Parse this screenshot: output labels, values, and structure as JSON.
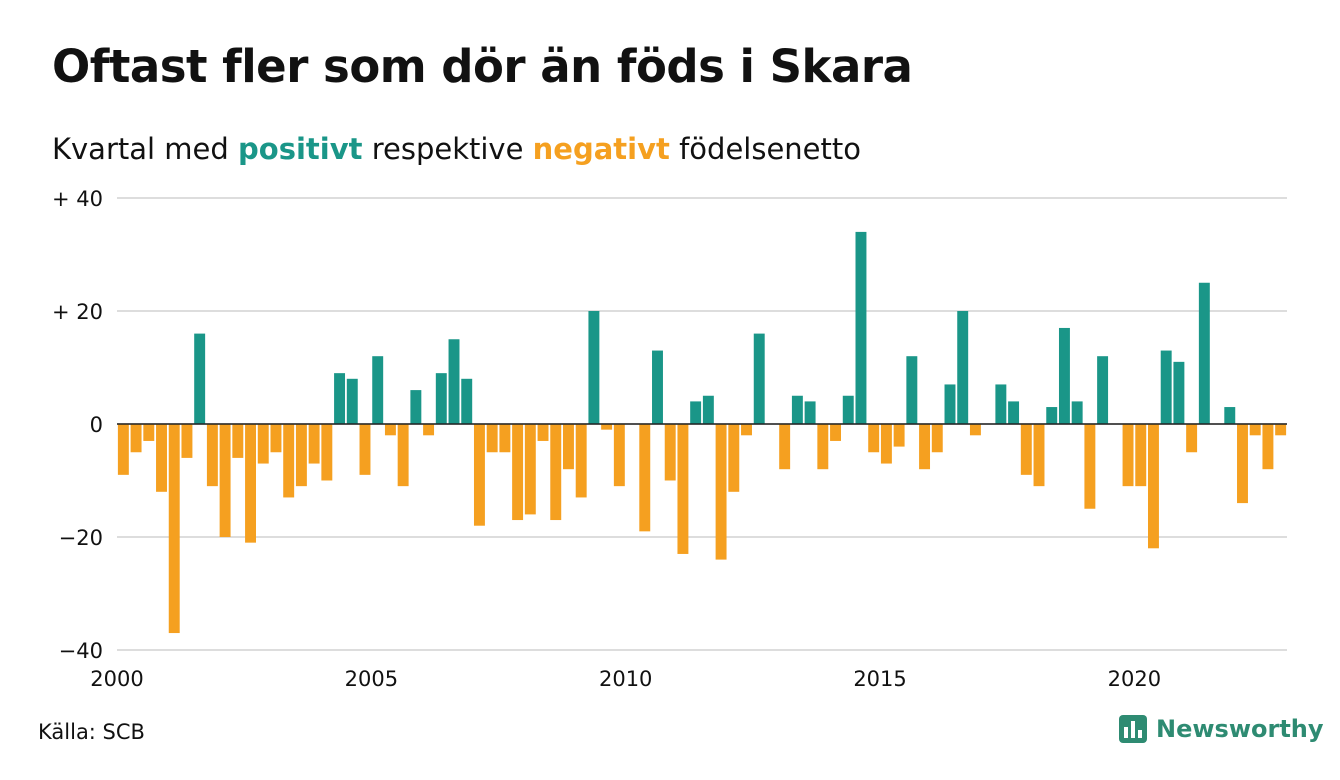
{
  "title": "Oftast fler som dör än föds i Skara",
  "subtitle": {
    "prefix": "Kvartal med ",
    "positive": "positivt",
    "middle": " respektive ",
    "negative": "negativt",
    "suffix": " födelsenetto"
  },
  "colors": {
    "positive": "#1a9688",
    "negative": "#f5a020",
    "grid": "#dddddd",
    "text": "#111111"
  },
  "source": "Källa: SCB",
  "logo": {
    "name": "Newsworthy",
    "icon": "newsworthy-chart-icon",
    "color": "#2e8b72"
  },
  "chart_data": {
    "type": "bar",
    "x_start": 2000,
    "x_step": 0.25,
    "xlim": [
      2000,
      2023
    ],
    "ylim": [
      -40,
      40
    ],
    "yticks": [
      40,
      20,
      0,
      -20,
      -40
    ],
    "ytick_labels": [
      "+ 40",
      "+ 20",
      "0",
      "−20",
      "−40"
    ],
    "xticks": [
      2000,
      2005,
      2010,
      2015,
      2020
    ],
    "xtick_labels": [
      "2000",
      "2005",
      "2010",
      "2015",
      "2020"
    ],
    "grid": true,
    "values": [
      -9,
      -5,
      -3,
      -12,
      -37,
      -6,
      16,
      -11,
      -20,
      -6,
      -21,
      -7,
      -5,
      -13,
      -11,
      -7,
      -10,
      9,
      8,
      -9,
      12,
      -2,
      -11,
      6,
      -2,
      9,
      15,
      8,
      -18,
      -5,
      -5,
      -17,
      -16,
      -3,
      -17,
      -8,
      -13,
      20,
      -1,
      -11,
      0,
      -19,
      13,
      -10,
      -23,
      4,
      5,
      -24,
      -12,
      -2,
      16,
      0,
      -8,
      5,
      4,
      -8,
      -3,
      5,
      34,
      -5,
      -7,
      -4,
      12,
      -8,
      -5,
      7,
      20,
      -2,
      0,
      7,
      4,
      -9,
      -11,
      3,
      17,
      4,
      -15,
      12,
      0,
      -11,
      -11,
      -22,
      13,
      11,
      -5,
      25,
      0,
      3,
      -14,
      -2,
      -8,
      -2
    ]
  }
}
